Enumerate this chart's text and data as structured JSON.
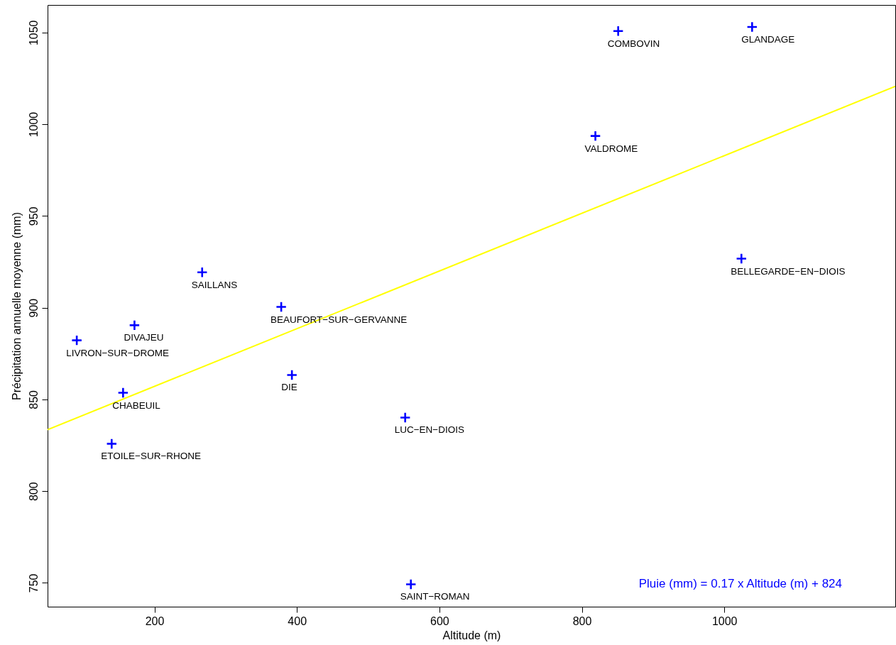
{
  "chart_data": {
    "type": "scatter",
    "xlabel": "Altitude (m)",
    "ylabel": "Précipitation annuelle moyenne (mm)",
    "x": [
      851,
      1039,
      819,
      1024,
      267,
      378,
      172,
      91,
      393,
      156,
      552,
      140,
      560
    ],
    "series": [
      {
        "color": "#0000ff",
        "values": [
          1050.8,
          1053,
          993.6,
          926.7,
          919.3,
          900.4,
          890.4,
          882.2,
          863.3,
          853.6,
          840.1,
          825.8,
          749.2
        ]
      },
      {
        "type": "line",
        "marker": "none",
        "color": "#ffff00",
        "x": [
          50,
          1240
        ],
        "values": [
          833.5,
          1020.6
        ]
      }
    ],
    "marker": "cross",
    "xlim": [
      50,
      1240
    ],
    "xticks": [
      200,
      400,
      600,
      800,
      1000
    ],
    "ylim": [
      737,
      1065
    ],
    "yticks": [
      750,
      800,
      850,
      900,
      950,
      1000,
      1050
    ],
    "annotations": [
      {
        "text": "COMBOVIN",
        "x": 851,
        "y": 1050.8
      },
      {
        "text": "GLANDAGE",
        "x": 1039,
        "y": 1053
      },
      {
        "text": "VALDROME",
        "x": 819,
        "y": 993.6
      },
      {
        "text": "BELLEGARDE−EN−DIOIS",
        "x": 1024,
        "y": 926.7
      },
      {
        "text": "SAILLANS",
        "x": 267,
        "y": 919.3
      },
      {
        "text": "BEAUFORT−SUR−GERVANNE",
        "x": 378,
        "y": 900.4
      },
      {
        "text": "DIVAJEU",
        "x": 172,
        "y": 890.4
      },
      {
        "text": "LIVRON−SUR−DROME",
        "x": 91,
        "y": 882.2
      },
      {
        "text": "DIE",
        "x": 393,
        "y": 863.3
      },
      {
        "text": "CHABEUIL",
        "x": 156,
        "y": 853.6
      },
      {
        "text": "LUC−EN−DIOIS",
        "x": 552,
        "y": 840.1
      },
      {
        "text": "ETOILE−SUR−RHONE",
        "x": 140,
        "y": 825.8
      },
      {
        "text": "SAINT−ROMAN",
        "x": 560,
        "y": 749.2
      },
      "Pluie (mm) = 0.17 x Altitude (m) + 824"
    ]
  }
}
